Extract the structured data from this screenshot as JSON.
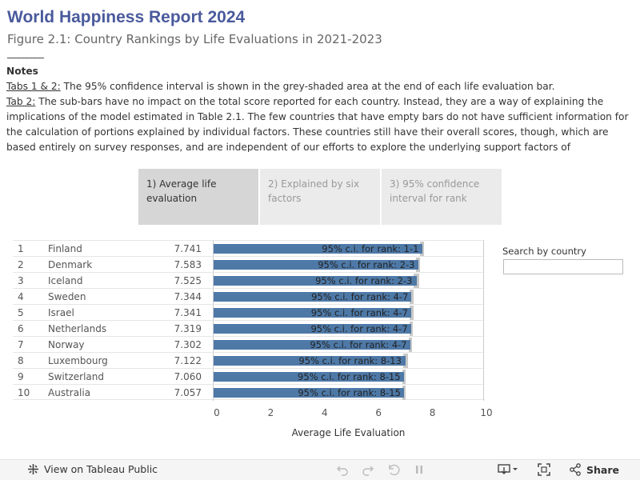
{
  "header": {
    "title": "World Happiness Report 2024",
    "subtitle": "Figure 2.1: Country Rankings by Life Evaluations in 2021-2023",
    "rule": "_________"
  },
  "notes": {
    "heading": "Notes",
    "tabs12_label": "Tabs 1 & 2:",
    "tabs12_text": " The 95% confidence interval is shown in the grey-shaded area at the end of each life evaluation bar.",
    "tab2_label": "Tab 2:",
    "tab2_text": " The sub-bars have no impact on the total score reported for each country. Instead, they are a way of explaining the implications of the model estimated in Table 2.1. The few countries that have empty bars do not have sufficient information for the calculation of portions explained by individual factors. These countries still have their overall scores, though, which are based entirely on survey responses, and are independent of our efforts to explore the underlying support factors of"
  },
  "tabs": [
    {
      "label": "1) Average life evaluation"
    },
    {
      "label": "2) Explained by six factors"
    },
    {
      "label": "3) 95% confidence interval for rank"
    }
  ],
  "search": {
    "label": "Search by country",
    "value": "",
    "placeholder": ""
  },
  "chart_data": {
    "type": "bar",
    "orientation": "horizontal",
    "xlabel": "Average Life Evaluation",
    "xlim": [
      0,
      10
    ],
    "xticks": [
      "0",
      "2",
      "4",
      "6",
      "8",
      "10"
    ],
    "bar_color": "#4e79a7",
    "ci_color": "#c8c8c8",
    "rows": [
      {
        "rank": "1",
        "country": "Finland",
        "score_text": "7.741",
        "value": 7.741,
        "ci_low": 7.67,
        "ci_high": 7.81,
        "label": "95% c.i. for rank: 1-1"
      },
      {
        "rank": "2",
        "country": "Denmark",
        "score_text": "7.583",
        "value": 7.583,
        "ci_low": 7.52,
        "ci_high": 7.65,
        "label": "95% c.i. for rank: 2-3"
      },
      {
        "rank": "3",
        "country": "Iceland",
        "score_text": "7.525",
        "value": 7.525,
        "ci_low": 7.43,
        "ci_high": 7.62,
        "label": "95% c.i. for rank: 2-3"
      },
      {
        "rank": "4",
        "country": "Sweden",
        "score_text": "7.344",
        "value": 7.344,
        "ci_low": 7.28,
        "ci_high": 7.41,
        "label": "95% c.i. for rank: 4-7"
      },
      {
        "rank": "5",
        "country": "Israel",
        "score_text": "7.341",
        "value": 7.341,
        "ci_low": 7.27,
        "ci_high": 7.41,
        "label": "95% c.i. for rank: 4-7"
      },
      {
        "rank": "6",
        "country": "Netherlands",
        "score_text": "7.319",
        "value": 7.319,
        "ci_low": 7.26,
        "ci_high": 7.38,
        "label": "95% c.i. for rank: 4-7"
      },
      {
        "rank": "7",
        "country": "Norway",
        "score_text": "7.302",
        "value": 7.302,
        "ci_low": 7.23,
        "ci_high": 7.37,
        "label": "95% c.i. for rank: 4-7"
      },
      {
        "rank": "8",
        "country": "Luxembourg",
        "score_text": "7.122",
        "value": 7.122,
        "ci_low": 7.03,
        "ci_high": 7.21,
        "label": "95% c.i. for rank: 8-13"
      },
      {
        "rank": "9",
        "country": "Switzerland",
        "score_text": "7.060",
        "value": 7.06,
        "ci_low": 6.99,
        "ci_high": 7.13,
        "label": "95% c.i. for rank: 8-15"
      },
      {
        "rank": "10",
        "country": "Australia",
        "score_text": "7.057",
        "value": 7.057,
        "ci_low": 7.0,
        "ci_high": 7.12,
        "label": "95% c.i. for rank: 8-15"
      }
    ]
  },
  "footer": {
    "view_label": "View on Tableau Public",
    "share_label": "Share",
    "icons": [
      "tableau-logo-icon",
      "undo-icon",
      "redo-icon",
      "revert-icon",
      "pause-icon",
      "download-icon",
      "fullscreen-icon",
      "share-icon"
    ]
  }
}
